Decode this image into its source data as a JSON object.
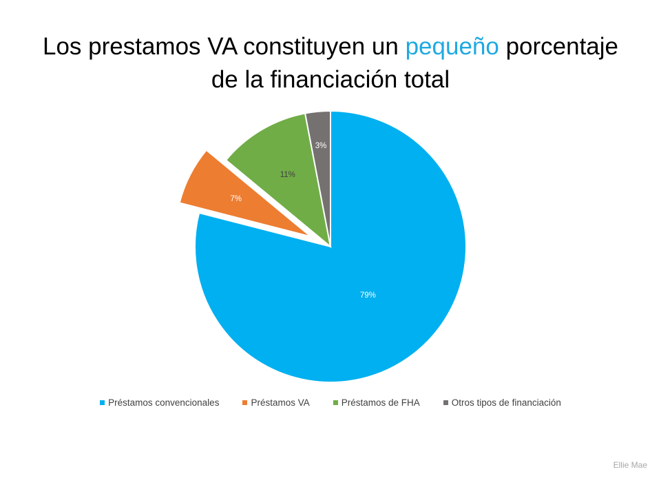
{
  "title": {
    "line1_pre": "Los prestamos VA constituyen un ",
    "line1_highlight": "pequeño",
    "line1_post": " porcentaje",
    "line2": "de la financiación total",
    "highlight_color": "#1fa9e1"
  },
  "source": "Ellie Mae",
  "chart_data": {
    "type": "pie",
    "title": "Los prestamos VA constituyen un pequeño porcentaje de la financiación total",
    "categories": [
      "Préstamos convencionales",
      "Préstamos VA",
      "Préstamos de FHA",
      "Otros tipos de financiación"
    ],
    "values": [
      79,
      7,
      11,
      3
    ],
    "labels": [
      "79%",
      "7%",
      "11%",
      "3%"
    ],
    "colors": [
      "#00b0f0",
      "#ed7d31",
      "#70ad47",
      "#767171"
    ],
    "exploded": [
      "Préstamos VA"
    ],
    "legend_position": "bottom",
    "source": "Ellie Mae"
  }
}
